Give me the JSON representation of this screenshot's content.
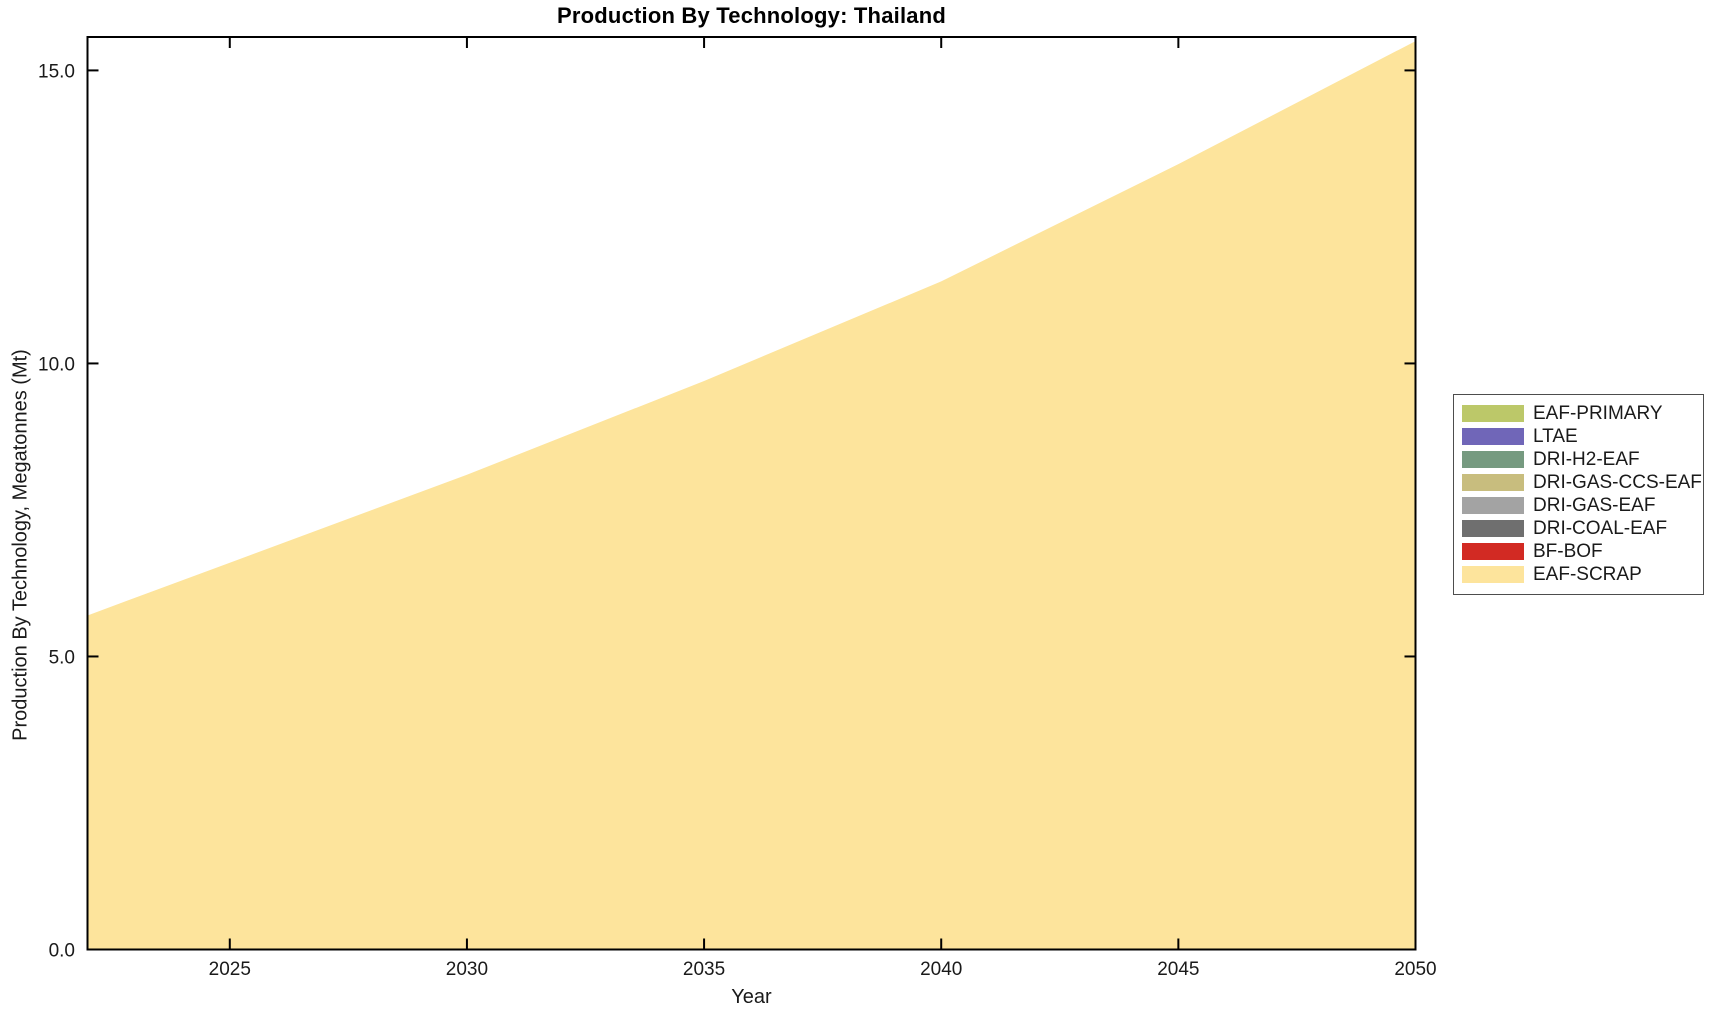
{
  "chart_data": {
    "type": "area",
    "title": "Production By Technology: Thailand",
    "xlabel": "Year",
    "ylabel": "Production By Technology, Megatonnes (Mt)",
    "x": [
      2022,
      2025,
      2030,
      2035,
      2040,
      2045,
      2050
    ],
    "xlim": [
      2022,
      2050
    ],
    "ylim": [
      0,
      15.57
    ],
    "xticks": [
      2025,
      2030,
      2035,
      2040,
      2045,
      2050
    ],
    "yticks": [
      0,
      5,
      10,
      15
    ],
    "ytick_labels": [
      "0.0",
      "5.0",
      "10.0",
      "15.0"
    ],
    "grid": false,
    "legend_position": "outside-right",
    "stacking": "last-series-at-bottom",
    "series": [
      {
        "name": "EAF-PRIMARY",
        "color": "#bcc869",
        "values": [
          0,
          0,
          0,
          0,
          0,
          0,
          0
        ]
      },
      {
        "name": "LTAE",
        "color": "#7066b8",
        "values": [
          0,
          0,
          0,
          0,
          0,
          0,
          0
        ]
      },
      {
        "name": "DRI-H2-EAF",
        "color": "#769a80",
        "values": [
          0,
          0,
          0,
          0,
          0,
          0,
          0
        ]
      },
      {
        "name": "DRI-GAS-CCS-EAF",
        "color": "#c8bd7e",
        "values": [
          0,
          0,
          0,
          0,
          0,
          0,
          0
        ]
      },
      {
        "name": "DRI-GAS-EAF",
        "color": "#a3a3a3",
        "values": [
          0,
          0,
          0,
          0,
          0,
          0,
          0
        ]
      },
      {
        "name": "DRI-COAL-EAF",
        "color": "#6f6f6f",
        "values": [
          0,
          0,
          0,
          0,
          0,
          0,
          0
        ]
      },
      {
        "name": "BF-BOF",
        "color": "#d22a23",
        "values": [
          0,
          0,
          0,
          0,
          0,
          0,
          0
        ]
      },
      {
        "name": "EAF-SCRAP",
        "color": "#fde49c",
        "values": [
          5.7,
          6.6,
          8.1,
          9.7,
          11.4,
          13.4,
          15.5
        ]
      }
    ]
  },
  "frame": {
    "background": "#ffffff",
    "axis_color": "#000000",
    "legend_border_color": "#4d4d4d"
  }
}
